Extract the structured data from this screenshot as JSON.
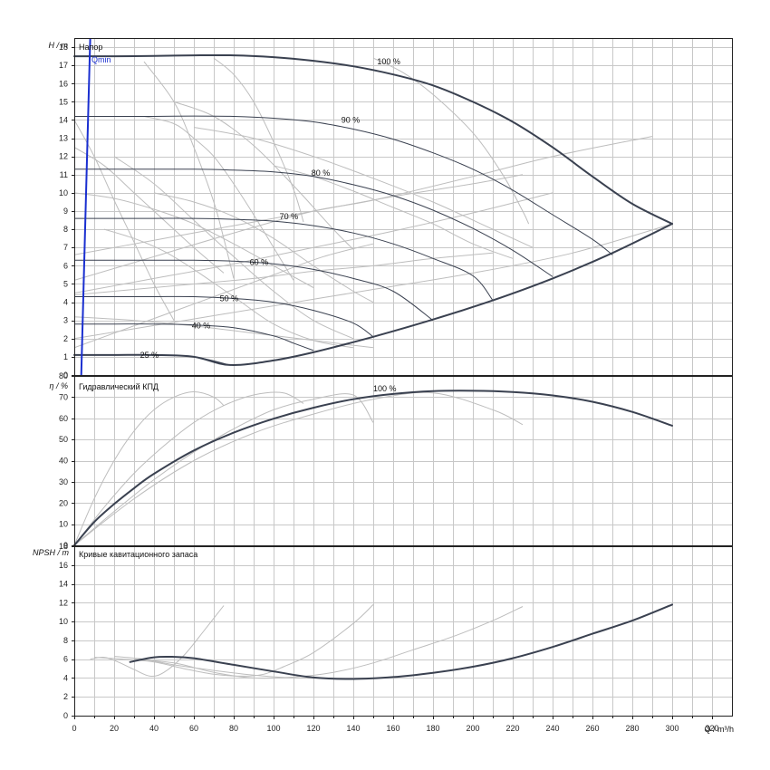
{
  "chart_data": [
    {
      "type": "line",
      "title": "Напор",
      "ylabel": "H / m",
      "ylim": [
        0,
        18.5
      ],
      "xlim": [
        0,
        330
      ],
      "grid": true,
      "qmin_label": "Qmin",
      "qmin": {
        "x": [
          3.5,
          8
        ],
        "y": [
          0,
          18.5
        ]
      },
      "speed_labels": [
        {
          "text": "100 %",
          "x": 152,
          "y": 17.2
        },
        {
          "text": "90 %",
          "x": 134,
          "y": 14.0
        },
        {
          "text": "80 %",
          "x": 119,
          "y": 11.1
        },
        {
          "text": "70 %",
          "x": 103,
          "y": 8.7
        },
        {
          "text": "60 %",
          "x": 88,
          "y": 6.2
        },
        {
          "text": "50 %",
          "x": 73,
          "y": 4.2
        },
        {
          "text": "40 %",
          "x": 59,
          "y": 2.7
        },
        {
          "text": "25 %",
          "x": 33,
          "y": 1.1
        }
      ],
      "series": [
        {
          "x": [
            0,
            20,
            40,
            60,
            80,
            100,
            120,
            140,
            160,
            180,
            200,
            220,
            240,
            260,
            280,
            300
          ],
          "y": [
            17.5,
            17.5,
            17.52,
            17.55,
            17.55,
            17.45,
            17.25,
            16.95,
            16.5,
            15.9,
            15.0,
            13.9,
            12.5,
            10.9,
            9.4,
            8.3
          ]
        },
        {
          "x": [
            0,
            20,
            40,
            60,
            80,
            100,
            120,
            140,
            160,
            180,
            200,
            220,
            240,
            260,
            270
          ],
          "y": [
            14.2,
            14.2,
            14.2,
            14.22,
            14.2,
            14.1,
            13.9,
            13.5,
            12.95,
            12.2,
            11.3,
            10.15,
            8.8,
            7.45,
            6.6
          ]
        },
        {
          "x": [
            0,
            20,
            40,
            60,
            80,
            100,
            120,
            140,
            160,
            180,
            200,
            220,
            240
          ],
          "y": [
            11.3,
            11.3,
            11.3,
            11.3,
            11.25,
            11.15,
            10.9,
            10.45,
            9.85,
            9.05,
            8.05,
            6.85,
            5.4
          ]
        },
        {
          "x": [
            0,
            20,
            40,
            60,
            80,
            100,
            120,
            140,
            160,
            180,
            200,
            210
          ],
          "y": [
            8.6,
            8.6,
            8.6,
            8.6,
            8.55,
            8.45,
            8.2,
            7.8,
            7.2,
            6.4,
            5.45,
            4.1
          ]
        },
        {
          "x": [
            0,
            20,
            40,
            60,
            80,
            100,
            120,
            140,
            160,
            180
          ],
          "y": [
            6.3,
            6.3,
            6.3,
            6.3,
            6.25,
            6.1,
            5.8,
            5.3,
            4.6,
            3.0
          ]
        },
        {
          "x": [
            0,
            20,
            40,
            60,
            80,
            100,
            120,
            140,
            150
          ],
          "y": [
            4.3,
            4.3,
            4.3,
            4.3,
            4.2,
            4.0,
            3.55,
            2.85,
            2.1
          ]
        },
        {
          "x": [
            0,
            20,
            40,
            60,
            80,
            100,
            110,
            120
          ],
          "y": [
            2.8,
            2.8,
            2.8,
            2.75,
            2.6,
            2.15,
            1.75,
            1.35
          ]
        },
        {
          "x": [
            0,
            20,
            40,
            60,
            78
          ],
          "y": [
            1.1,
            1.1,
            1.1,
            1.0,
            0.55
          ]
        },
        {
          "x": [
            0,
            20,
            40,
            60,
            78,
            100,
            120,
            150,
            180,
            210,
            240,
            270,
            300
          ],
          "y": [
            1.1,
            1.1,
            1.1,
            1.0,
            0.55,
            0.8,
            1.25,
            2.1,
            3.05,
            4.1,
            5.3,
            6.7,
            8.3
          ]
        }
      ],
      "background_curves": [
        {
          "x": [
            0,
            40,
            80,
            120,
            150,
            200,
            240,
            290
          ],
          "y": [
            5.2,
            6.5,
            7.8,
            9.0,
            9.6,
            10.9,
            12.0,
            13.1
          ]
        },
        {
          "x": [
            0,
            40,
            80,
            120,
            160,
            200,
            240
          ],
          "y": [
            4.5,
            5.3,
            6.1,
            7.0,
            7.9,
            8.9,
            10.0
          ]
        },
        {
          "x": [
            0,
            40,
            80,
            120,
            160,
            200,
            225
          ],
          "y": [
            6.6,
            7.4,
            8.2,
            9.0,
            9.8,
            10.5,
            11.0
          ]
        },
        {
          "x": [
            70,
            80,
            90,
            100,
            110,
            115
          ],
          "y": [
            17.4,
            16.5,
            15.0,
            12.8,
            10.2,
            8.4
          ]
        },
        {
          "x": [
            150,
            165,
            180,
            200,
            215,
            225,
            228
          ],
          "y": [
            17.4,
            16.6,
            15.4,
            13.3,
            11.0,
            9.0,
            8.3
          ]
        },
        {
          "x": [
            35,
            50,
            60,
            70,
            75,
            80
          ],
          "y": [
            17.2,
            15.0,
            12.5,
            9.5,
            7.5,
            5.3
          ]
        },
        {
          "x": [
            35,
            50,
            60,
            70,
            80,
            90,
            100,
            110
          ],
          "y": [
            14.2,
            13.8,
            13.0,
            12.0,
            10.5,
            8.8,
            7.0,
            5.2
          ]
        },
        {
          "x": [
            50,
            70,
            90,
            110,
            130,
            140
          ],
          "y": [
            15.0,
            14.2,
            12.6,
            10.4,
            8.0,
            6.9
          ]
        },
        {
          "x": [
            0,
            30,
            60,
            90,
            120,
            150
          ],
          "y": [
            3.2,
            3.0,
            2.7,
            2.3,
            1.9,
            1.5
          ]
        },
        {
          "x": [
            0,
            25,
            50,
            75,
            100,
            125,
            150
          ],
          "y": [
            1.5,
            2.5,
            3.5,
            4.5,
            5.5,
            6.5,
            7.2
          ]
        },
        {
          "x": [
            15,
            30,
            45,
            60,
            80,
            100,
            120,
            140
          ],
          "y": [
            8.0,
            7.5,
            6.8,
            5.8,
            4.3,
            2.8,
            1.9,
            1.5
          ]
        },
        {
          "x": [
            20,
            40,
            60,
            80,
            100,
            120,
            140
          ],
          "y": [
            12.0,
            10.5,
            8.5,
            6.5,
            4.6,
            3.0,
            2.0
          ]
        },
        {
          "x": [
            40,
            60,
            80,
            100,
            120,
            140,
            150
          ],
          "y": [
            10.0,
            9.5,
            8.7,
            7.5,
            6.0,
            4.6,
            4.0
          ]
        },
        {
          "x": [
            100,
            120,
            140,
            160,
            180,
            200,
            220
          ],
          "y": [
            11.5,
            10.9,
            10.1,
            9.2,
            8.3,
            7.2,
            6.4
          ]
        },
        {
          "x": [
            60,
            90,
            120,
            150,
            180,
            210,
            230
          ],
          "y": [
            13.6,
            13.0,
            12.0,
            10.8,
            9.5,
            8.0,
            7.0
          ]
        },
        {
          "x": [
            0,
            20,
            40,
            60,
            80,
            100,
            120
          ],
          "y": [
            10.0,
            9.7,
            9.1,
            8.3,
            7.2,
            6.0,
            4.8
          ]
        },
        {
          "x": [
            0,
            15,
            30,
            45,
            60,
            75
          ],
          "y": [
            12.5,
            11.5,
            10.0,
            8.5,
            7.0,
            5.6
          ]
        },
        {
          "x": [
            0,
            10,
            20,
            30,
            40,
            50
          ],
          "y": [
            14.0,
            12.0,
            9.6,
            7.3,
            5.0,
            3.0
          ]
        },
        {
          "x": [
            0,
            30,
            60,
            90,
            120,
            150,
            180,
            210
          ],
          "y": [
            4.4,
            4.7,
            5.0,
            5.3,
            5.7,
            6.0,
            6.4,
            6.7
          ]
        },
        {
          "x": [
            0,
            50,
            100,
            150,
            200,
            250,
            300
          ],
          "y": [
            2.0,
            2.9,
            3.8,
            4.7,
            5.6,
            6.7,
            8.3
          ]
        }
      ]
    },
    {
      "type": "line",
      "title": "Гидравлический КПД",
      "ylabel": "η / %",
      "ylim": [
        0,
        80
      ],
      "xlim": [
        0,
        330
      ],
      "grid": true,
      "speed_label": {
        "text": "100 %",
        "x": 150,
        "y": 74
      },
      "series": [
        {
          "x": [
            0,
            10,
            20,
            30,
            40,
            60,
            80,
            100,
            120,
            140,
            160,
            180,
            200,
            220,
            240,
            260,
            280,
            300
          ],
          "y": [
            0,
            11,
            19.5,
            27,
            33.8,
            44.8,
            53.2,
            59.8,
            65,
            69,
            71.5,
            72.8,
            73,
            72.4,
            70.8,
            67.8,
            63,
            56.5
          ]
        }
      ],
      "background_curves": [
        {
          "x": [
            0,
            10,
            20,
            30,
            40,
            50,
            60,
            70,
            75
          ],
          "y": [
            0,
            22,
            40,
            54,
            64,
            70,
            72.5,
            70,
            66
          ]
        },
        {
          "x": [
            0,
            15,
            30,
            45,
            60,
            75,
            90,
            105,
            115
          ],
          "y": [
            0,
            18,
            34,
            47,
            58,
            66,
            71,
            72,
            67
          ]
        },
        {
          "x": [
            0,
            20,
            40,
            60,
            80,
            100,
            120,
            140,
            150
          ],
          "y": [
            0,
            16,
            31,
            44,
            55,
            64,
            69,
            71,
            58
          ]
        },
        {
          "x": [
            0,
            30,
            60,
            90,
            120,
            150,
            180,
            210,
            225
          ],
          "y": [
            0,
            22,
            40,
            53,
            62,
            69,
            72,
            64,
            57
          ]
        }
      ]
    },
    {
      "type": "line",
      "title": "Кривые кавитационного запаса",
      "ylabel": "NPSH / m",
      "xlabel": "Q / m³/h",
      "ylim": [
        0,
        18
      ],
      "xlim": [
        0,
        330
      ],
      "grid": true,
      "x_ticks": [
        "0",
        "20",
        "40",
        "60",
        "80",
        "100",
        "120",
        "140",
        "160",
        "180",
        "200",
        "220",
        "240",
        "260",
        "280",
        "300",
        "320"
      ],
      "series": [
        {
          "x": [
            28,
            40,
            50,
            60,
            80,
            100,
            120,
            140,
            160,
            180,
            200,
            220,
            240,
            260,
            280,
            300
          ],
          "y": [
            5.7,
            6.2,
            6.25,
            6.1,
            5.4,
            4.7,
            4.05,
            3.9,
            4.1,
            4.55,
            5.2,
            6.1,
            7.3,
            8.7,
            10.1,
            11.8
          ]
        }
      ],
      "background_curves": [
        {
          "x": [
            8,
            15,
            22,
            30,
            38,
            45,
            55,
            65,
            75
          ],
          "y": [
            6.0,
            6.2,
            5.7,
            4.9,
            4.2,
            4.6,
            6.4,
            9.0,
            11.7
          ]
        },
        {
          "x": [
            10,
            25,
            40,
            55,
            70,
            85,
            95,
            105,
            120,
            140,
            150
          ],
          "y": [
            6.2,
            6.0,
            5.7,
            5.0,
            4.4,
            4.2,
            4.4,
            5.2,
            6.7,
            9.8,
            11.8
          ]
        },
        {
          "x": [
            30,
            50,
            70,
            90,
            110,
            130,
            150,
            170,
            190,
            210,
            225
          ],
          "y": [
            6.0,
            5.6,
            4.6,
            4.0,
            4.1,
            4.6,
            5.6,
            7.0,
            8.4,
            10.1,
            11.6
          ]
        },
        {
          "x": [
            20,
            35,
            50,
            70,
            90,
            110,
            130
          ],
          "y": [
            6.3,
            6.0,
            5.4,
            4.8,
            4.3,
            4.0,
            4.0
          ]
        }
      ]
    }
  ]
}
